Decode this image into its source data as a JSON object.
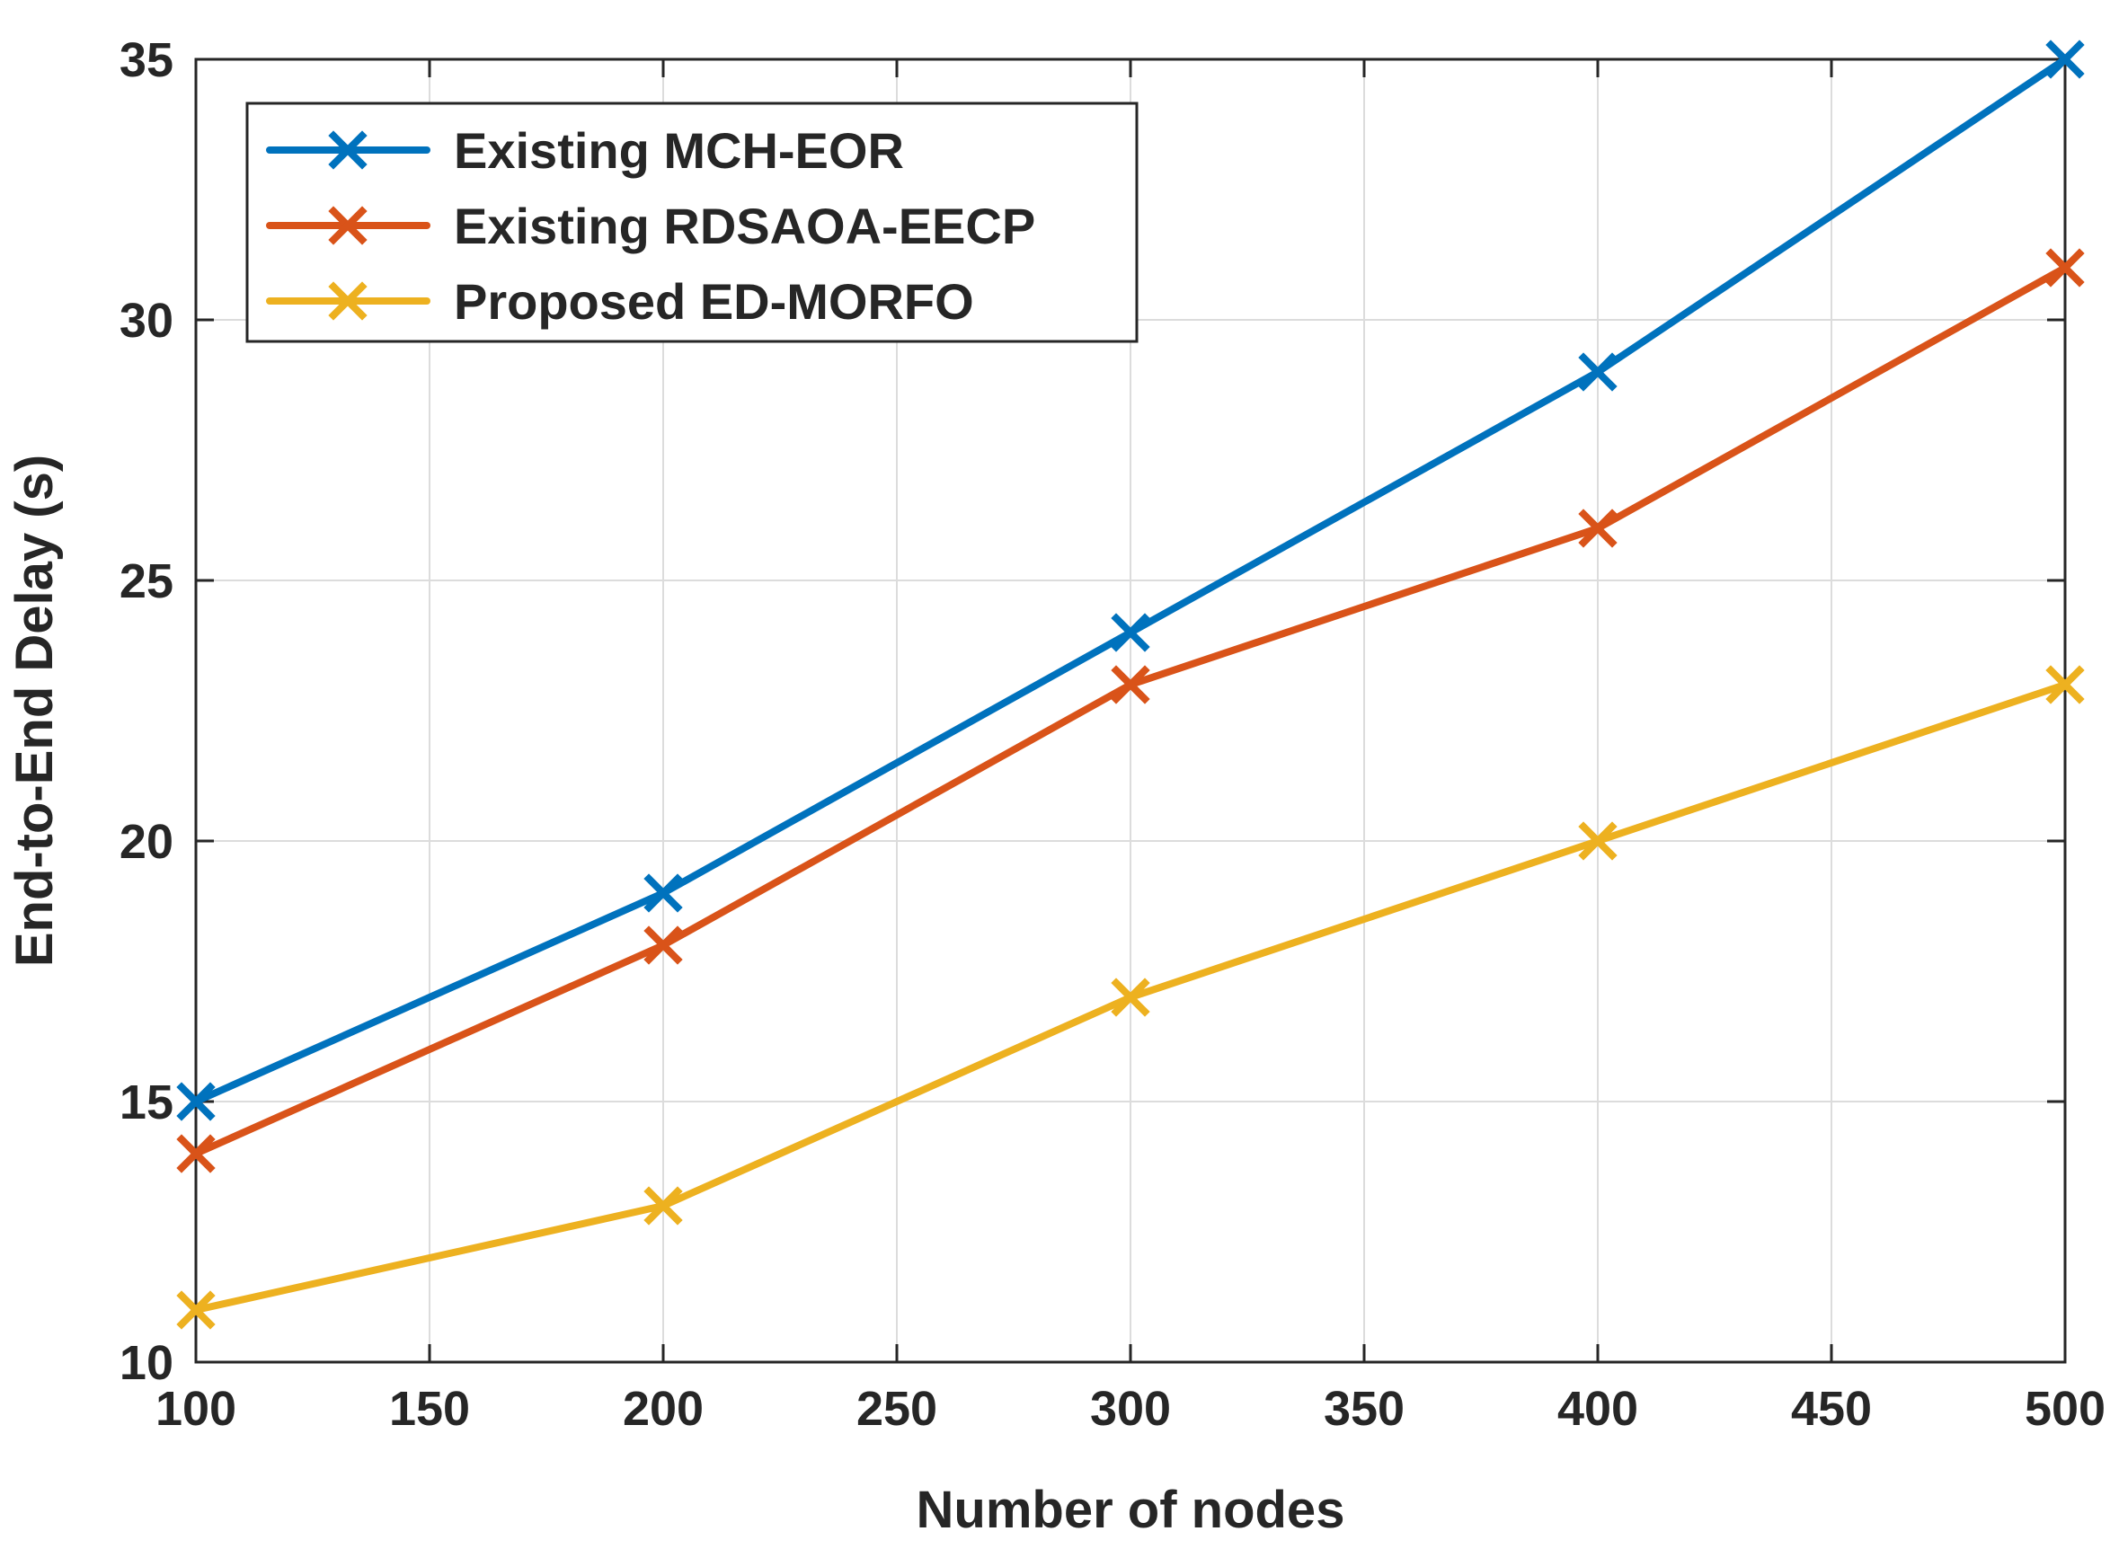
{
  "chart_data": {
    "type": "line",
    "title": "",
    "xlabel": "Number of nodes",
    "ylabel": "End-to-End Delay (s)",
    "xlim": [
      100,
      500
    ],
    "ylim": [
      10,
      35
    ],
    "xticks": [
      100,
      150,
      200,
      250,
      300,
      350,
      400,
      450,
      500
    ],
    "yticks": [
      10,
      15,
      20,
      25,
      30,
      35
    ],
    "grid": true,
    "legend_position": "top-left",
    "x": [
      100,
      200,
      300,
      400,
      500
    ],
    "series": [
      {
        "name": "Existing MCH-EOR",
        "color": "#0072BD",
        "marker": "x",
        "values": [
          15,
          19,
          24,
          29,
          35
        ]
      },
      {
        "name": "Existing RDSAOA-EECP",
        "color": "#D95319",
        "marker": "x",
        "values": [
          14,
          18,
          23,
          26,
          31
        ]
      },
      {
        "name": "Proposed ED-MORFO",
        "color": "#EDB120",
        "marker": "x",
        "values": [
          11,
          13,
          17,
          20,
          23
        ]
      }
    ]
  }
}
